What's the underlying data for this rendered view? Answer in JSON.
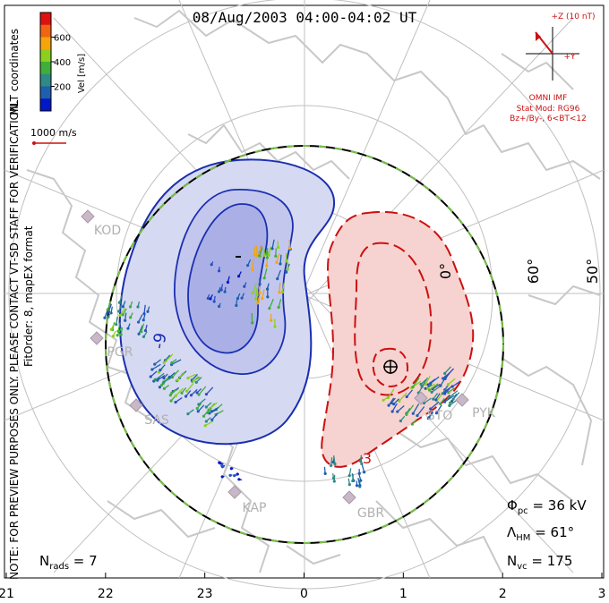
{
  "chart_data": {
    "type": "polar-convection-map",
    "title": "08/Aug/2003 04:00-04:02 UT",
    "coordinate_label": "MLT coordinates",
    "format_note": "FitOrder: 8, mapEX format",
    "preview_note": "NOTE: FOR PREVIEW PURPOSES ONLY. PLEASE CONTACT VT-SD STAFF FOR VERIFICATION.",
    "colorbar": {
      "label": "Vel [m/s]",
      "ticks": [
        "200",
        "400",
        "600"
      ],
      "colors": [
        "#0018c8",
        "#1e5fae",
        "#2e8a86",
        "#3fae3a",
        "#8ccf1e",
        "#f5a50a",
        "#f06414",
        "#e01010"
      ]
    },
    "reference_vector": {
      "label": "1000 m/s",
      "value": 1000
    },
    "imf": {
      "scale_label": "+Z (10 nT)",
      "y_label": "+Y",
      "source": "OMNI IMF",
      "model": "Stat Mod: RG96",
      "condition": "Bz+/By-, 6<BT<12"
    },
    "bottom_axis": {
      "ticks": [
        "21",
        "22",
        "23",
        "0",
        "1",
        "2",
        "3"
      ]
    },
    "lat_labels": [
      "0°",
      "60°",
      "50°"
    ],
    "stations": [
      "KOD",
      "PGR",
      "SAS",
      "KAP",
      "GBR",
      "STO",
      "PYK"
    ],
    "contour_labels": [
      "-9",
      "3"
    ],
    "stats": {
      "phi_pc": {
        "symbol": "Φ",
        "sub": "pc",
        "text": " = 36 kV",
        "value": 36
      },
      "lambda_hm": {
        "symbol": "Λ",
        "sub": "HM",
        "text": " = 61°",
        "value": 61
      },
      "n_vc": {
        "symbol": "N",
        "sub": "vc",
        "text": " = 175",
        "value": 175
      },
      "n_rads": {
        "symbol": "N",
        "sub": "rads",
        "text": " = 7",
        "value": 7
      }
    },
    "colors": {
      "negative_cell": "#1a2fb0",
      "positive_cell": "#cc1010",
      "negative_fill": "#d6d9f2",
      "negative_fill_inner": "#aab0e6",
      "positive_fill": "#f6d3d0",
      "heppner_maynard": "#76c043",
      "coastline": "#c8c8c8",
      "grid": "#c0c0c0"
    }
  }
}
